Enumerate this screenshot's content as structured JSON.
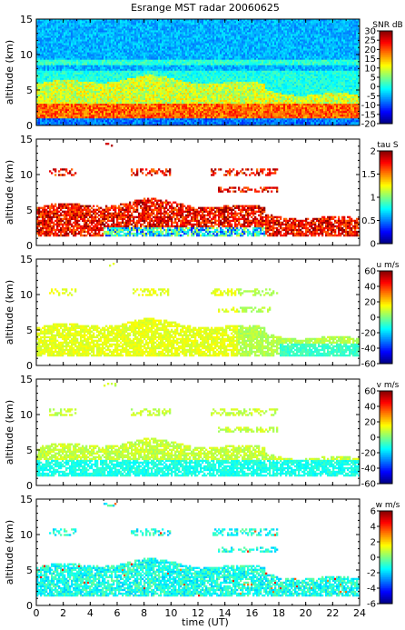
{
  "chart_data": {
    "type": "heatmap",
    "title": "Esrange MST radar 20060625",
    "xlabel": "time (UT)",
    "xlim": [
      0,
      24
    ],
    "x_ticks": [
      "0",
      "2",
      "4",
      "6",
      "8",
      "10",
      "12",
      "14",
      "16",
      "18",
      "20",
      "22",
      "24"
    ],
    "panels": [
      {
        "ylabel": "altitude (km)",
        "ylim": [
          0,
          15
        ],
        "y_ticks": [
          "0",
          "5",
          "10",
          "15"
        ],
        "colorbar": {
          "label": "SNR dB",
          "range": [
            -20,
            30
          ],
          "ticks": [
            "30",
            "25",
            "20",
            "15",
            "10",
            "5",
            "0",
            "-5",
            "-10",
            "-15",
            "-20"
          ]
        },
        "field": "snr",
        "description_of_content": "full-coverage heatmap: low SNR above 8 km, elevated SNR 1-6 km, strongest 1-3 km"
      },
      {
        "ylabel": "altitude (km)",
        "ylim": [
          0,
          15
        ],
        "y_ticks": [
          "0",
          "5",
          "10",
          "15"
        ],
        "colorbar": {
          "label": "tau S",
          "range": [
            0,
            2
          ],
          "ticks": [
            "2",
            "1.5",
            "1",
            "0.5",
            "0"
          ]
        },
        "field": "tau"
      },
      {
        "ylabel": "altitude (km)",
        "ylim": [
          0,
          15
        ],
        "y_ticks": [
          "0",
          "5",
          "10",
          "15"
        ],
        "colorbar": {
          "label": "u m/s",
          "range": [
            -60,
            60
          ],
          "ticks": [
            "60",
            "40",
            "20",
            "0",
            "-20",
            "-40",
            "-60"
          ]
        },
        "field": "u"
      },
      {
        "ylabel": "altitude (km)",
        "ylim": [
          0,
          15
        ],
        "y_ticks": [
          "0",
          "5",
          "10",
          "15"
        ],
        "colorbar": {
          "label": "v m/s",
          "range": [
            -60,
            60
          ],
          "ticks": [
            "60",
            "40",
            "20",
            "0",
            "-20",
            "-40",
            "-60"
          ]
        },
        "field": "v"
      },
      {
        "ylabel": "altitude (km)",
        "ylim": [
          0,
          15
        ],
        "y_ticks": [
          "0",
          "5",
          "10",
          "15"
        ],
        "colorbar": {
          "label": "w m/s",
          "range": [
            -6,
            6
          ],
          "ticks": [
            "6",
            "4",
            "2",
            "0",
            "-2",
            "-4",
            "-6"
          ]
        },
        "field": "w"
      }
    ]
  }
}
